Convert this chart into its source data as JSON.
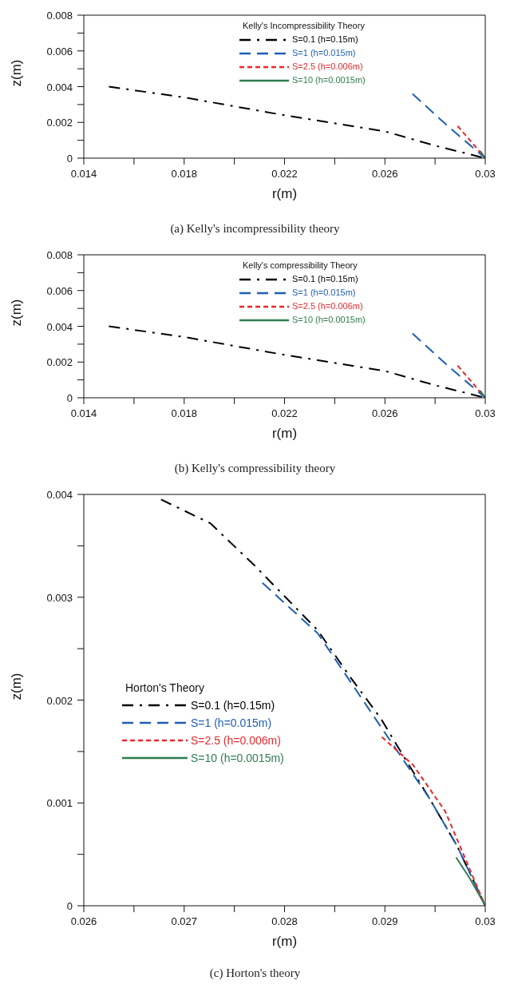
{
  "chart_data": [
    {
      "type": "line",
      "title": "(a) Kelly's incompressibility theory",
      "xlabel": "r(m)",
      "ylabel": "z(m)",
      "legend_title": "Kelly's Incompressibility Theory",
      "legend": "top",
      "grid": false,
      "marker": "none",
      "xlim": [
        0.014,
        0.03
      ],
      "xticks": [
        0.014,
        {
          "value": 0.016,
          "label": null
        },
        0.018,
        {
          "value": 0.02,
          "label": null
        },
        0.022,
        {
          "value": 0.024,
          "label": null
        },
        0.026,
        {
          "value": 0.028,
          "label": null
        },
        0.03
      ],
      "ylim": [
        0,
        0.008
      ],
      "yticks": [
        0,
        {
          "value": 0.001,
          "label": null
        },
        0.002,
        {
          "value": 0.003,
          "label": null
        },
        0.004,
        {
          "value": 0.005,
          "label": null
        },
        0.006,
        {
          "value": 0.007,
          "label": null
        },
        0.008
      ],
      "series": [
        {
          "name": "S=0.1 (h=0.15m)",
          "color": "#000000",
          "line_style": "dashdot",
          "x": [
            0.015,
            0.018,
            0.022,
            0.026,
            0.028,
            0.03
          ],
          "values": [
            0.004,
            0.0034,
            0.0024,
            0.0015,
            0.0007,
            0
          ]
        },
        {
          "name": "S=1 (h=0.015m)",
          "color": "#1f5fb4",
          "line_style": "dashed",
          "x": [
            0.0271,
            0.0285,
            0.03
          ],
          "values": [
            0.0036,
            0.0018,
            0
          ]
        },
        {
          "name": "S=2.5 (h=0.006m)",
          "color": "#e8292c",
          "line_style": "dotted",
          "x": [
            0.0289,
            0.03
          ],
          "values": [
            0.0018,
            0
          ]
        },
        {
          "name": "S=10 (h=0.0015m)",
          "color": "#2e7d4f",
          "line_style": "solid",
          "x": [
            0.0298,
            0.03
          ],
          "values": [
            0.0004,
            0
          ]
        }
      ]
    },
    {
      "type": "line",
      "title": "(b) Kelly's compressibility theory",
      "xlabel": "r(m)",
      "ylabel": "z(m)",
      "legend_title": "Kelly's compressibility Theory",
      "legend": "top",
      "grid": false,
      "marker": "none",
      "xlim": [
        0.014,
        0.03
      ],
      "xticks": [
        0.014,
        {
          "value": 0.016,
          "label": null
        },
        0.018,
        {
          "value": 0.02,
          "label": null
        },
        0.022,
        {
          "value": 0.024,
          "label": null
        },
        0.026,
        {
          "value": 0.028,
          "label": null
        },
        0.03
      ],
      "ylim": [
        0,
        0.008
      ],
      "yticks": [
        0,
        {
          "value": 0.001,
          "label": null
        },
        0.002,
        {
          "value": 0.003,
          "label": null
        },
        0.004,
        {
          "value": 0.005,
          "label": null
        },
        0.006,
        {
          "value": 0.007,
          "label": null
        },
        0.008
      ],
      "series": [
        {
          "name": "S=0.1 (h=0.15m)",
          "color": "#000000",
          "line_style": "dashdot",
          "x": [
            0.015,
            0.018,
            0.022,
            0.026,
            0.028,
            0.03
          ],
          "values": [
            0.004,
            0.0034,
            0.0024,
            0.0015,
            0.0007,
            0
          ]
        },
        {
          "name": "S=1 (h=0.015m)",
          "color": "#1f5fb4",
          "line_style": "dashed",
          "x": [
            0.0271,
            0.0285,
            0.03
          ],
          "values": [
            0.0036,
            0.0018,
            0
          ]
        },
        {
          "name": "S=2.5 (h=0.006m)",
          "color": "#e8292c",
          "line_style": "dotted",
          "x": [
            0.0289,
            0.03
          ],
          "values": [
            0.0018,
            0
          ]
        },
        {
          "name": "S=10 (h=0.0015m)",
          "color": "#2e7d4f",
          "line_style": "solid",
          "x": [
            0.0298,
            0.03
          ],
          "values": [
            0.0004,
            0
          ]
        }
      ]
    },
    {
      "type": "line",
      "title": "(c) Horton's theory",
      "xlabel": "r(m)",
      "ylabel": "z(m)",
      "legend_title": "Horton's Theory",
      "legend": "left",
      "grid": false,
      "marker": "none",
      "xlim": [
        0.026,
        0.03
      ],
      "xticks": [
        0.026,
        {
          "value": 0.0265,
          "label": null
        },
        0.027,
        {
          "value": 0.0275,
          "label": null
        },
        0.028,
        {
          "value": 0.0285,
          "label": null
        },
        0.029,
        {
          "value": 0.0295,
          "label": null
        },
        0.03
      ],
      "ylim": [
        0,
        0.004
      ],
      "yticks": [
        0,
        {
          "value": 0.0005,
          "label": null
        },
        0.001,
        {
          "value": 0.0015,
          "label": null
        },
        0.002,
        {
          "value": 0.0025,
          "label": null
        },
        0.003,
        {
          "value": 0.0035,
          "label": null
        },
        0.004
      ],
      "series": [
        {
          "name": "S=0.1 (h=0.15m)",
          "color": "#000000",
          "line_style": "dashdot",
          "x": [
            0.02677,
            0.02726,
            0.0277,
            0.02802,
            0.02833,
            0.02865,
            0.02896,
            0.02912,
            0.02944,
            0.02972,
            0.03
          ],
          "values": [
            0.00395,
            0.00372,
            0.00331,
            0.00299,
            0.00268,
            0.00223,
            0.00182,
            0.00156,
            0.00105,
            0.00058,
            0
          ]
        },
        {
          "name": "S=1 (h=0.015m)",
          "color": "#1f5fb4",
          "line_style": "dashed",
          "x": [
            0.02778,
            0.02833,
            0.02896,
            0.02944,
            0.02972,
            0.03
          ],
          "values": [
            0.00314,
            0.00265,
            0.00174,
            0.00105,
            0.00058,
            0
          ]
        },
        {
          "name": "S=2.5 (h=0.006m)",
          "color": "#e8292c",
          "line_style": "dotted",
          "x": [
            0.02897,
            0.02928,
            0.0296,
            0.03
          ],
          "values": [
            0.00164,
            0.00137,
            0.00092,
            0
          ]
        },
        {
          "name": "S=10 (h=0.0015m)",
          "color": "#2e7d4f",
          "line_style": "solid",
          "x": [
            0.02971,
            0.02985,
            0.03
          ],
          "values": [
            0.00047,
            0.00026,
            0
          ]
        }
      ]
    }
  ]
}
